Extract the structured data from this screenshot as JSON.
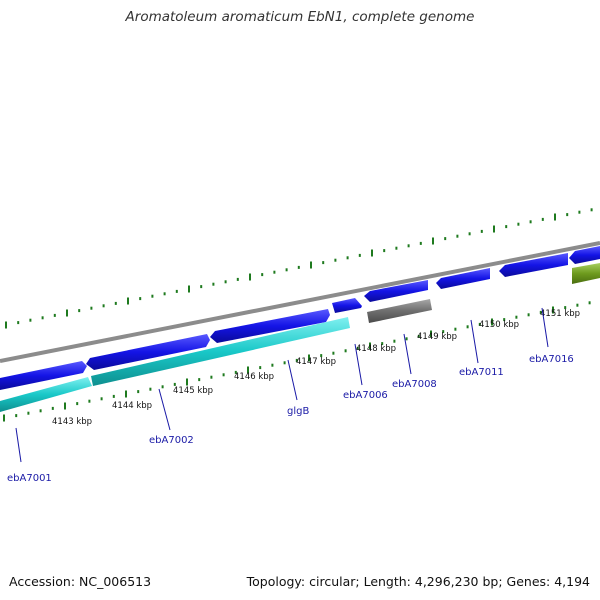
{
  "title": "Aromatoleum aromaticum EbN1, complete genome",
  "accession": "Accession: NC_006513",
  "summary": "Topology: circular; Length: 4,296,230 bp; Genes: 4,194",
  "colors": {
    "forward_gene": "#1414e6",
    "reverse_cds": "#19c8c8",
    "pseudo": "#6e6e6e",
    "rna": "#6e9b1e",
    "backbone": "#8c8c8c",
    "ticks": "#1e7a1e",
    "label": "#1a1aa6"
  },
  "scale": {
    "unit": "kbp",
    "major_ticks": [
      "4143 kbp",
      "4144 kbp",
      "4145 kbp",
      "4146 kbp",
      "4147 kbp",
      "4148 kbp",
      "4149 kbp",
      "4150 kbp",
      "4151 kbp"
    ]
  },
  "gene_labels": [
    "ebA7001",
    "ebA7002",
    "glgB",
    "ebA7006",
    "ebA7008",
    "ebA7011",
    "ebA7016"
  ]
}
